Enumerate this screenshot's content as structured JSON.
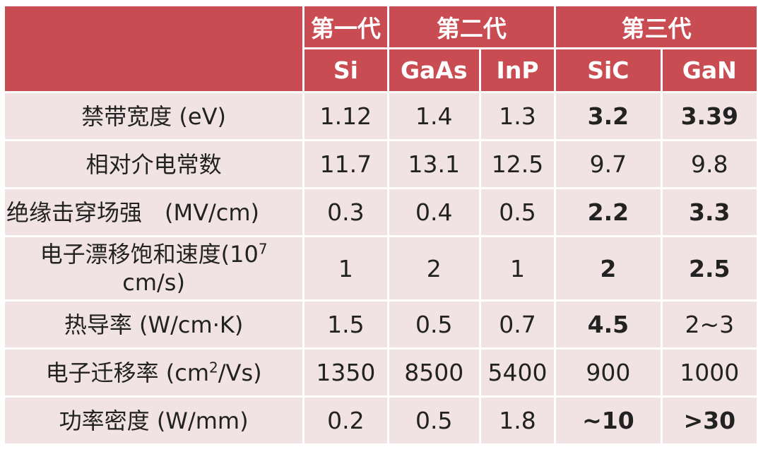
{
  "header": {
    "generations": [
      {
        "label": "第一代"
      },
      {
        "label": "第二代"
      },
      {
        "label": "第三代"
      }
    ],
    "materials": [
      "Si",
      "GaAs",
      "InP",
      "SiC",
      "GaN"
    ]
  },
  "rows": [
    {
      "label": "禁带宽度 (eV)",
      "values": [
        "1.12",
        "1.4",
        "1.3",
        "3.2",
        "3.39"
      ],
      "bold": [
        false,
        false,
        false,
        true,
        true
      ]
    },
    {
      "label": "相对介电常数",
      "values": [
        "11.7",
        "13.1",
        "12.5",
        "9.7",
        "9.8"
      ],
      "bold": [
        false,
        false,
        false,
        false,
        false
      ]
    },
    {
      "label": "绝缘击穿场强　(MV/cm)",
      "values": [
        "0.3",
        "0.4",
        "0.5",
        "2.2",
        "3.3"
      ],
      "bold": [
        false,
        false,
        false,
        true,
        true
      ]
    },
    {
      "label_pre": "电子漂移饱和速度(10",
      "label_sup": "7",
      "label_post": "cm/s)",
      "values": [
        "1",
        "2",
        "1",
        "2",
        "2.5"
      ],
      "bold": [
        false,
        false,
        false,
        true,
        true
      ]
    },
    {
      "label": "热导率 (W/cm·K)",
      "values": [
        "1.5",
        "0.5",
        "0.7",
        "4.5",
        "2~3"
      ],
      "bold": [
        false,
        false,
        false,
        true,
        false
      ]
    },
    {
      "label_pre": "电子迁移率 (cm",
      "label_sup": "2",
      "label_post": "/Vs)",
      "values": [
        "1350",
        "8500",
        "5400",
        "900",
        "1000"
      ],
      "bold": [
        false,
        false,
        false,
        false,
        false
      ]
    },
    {
      "label": "功率密度 (W/mm)",
      "values": [
        "0.2",
        "0.5",
        "1.8",
        "~10",
        ">30"
      ],
      "bold": [
        false,
        false,
        false,
        true,
        true
      ]
    }
  ]
}
